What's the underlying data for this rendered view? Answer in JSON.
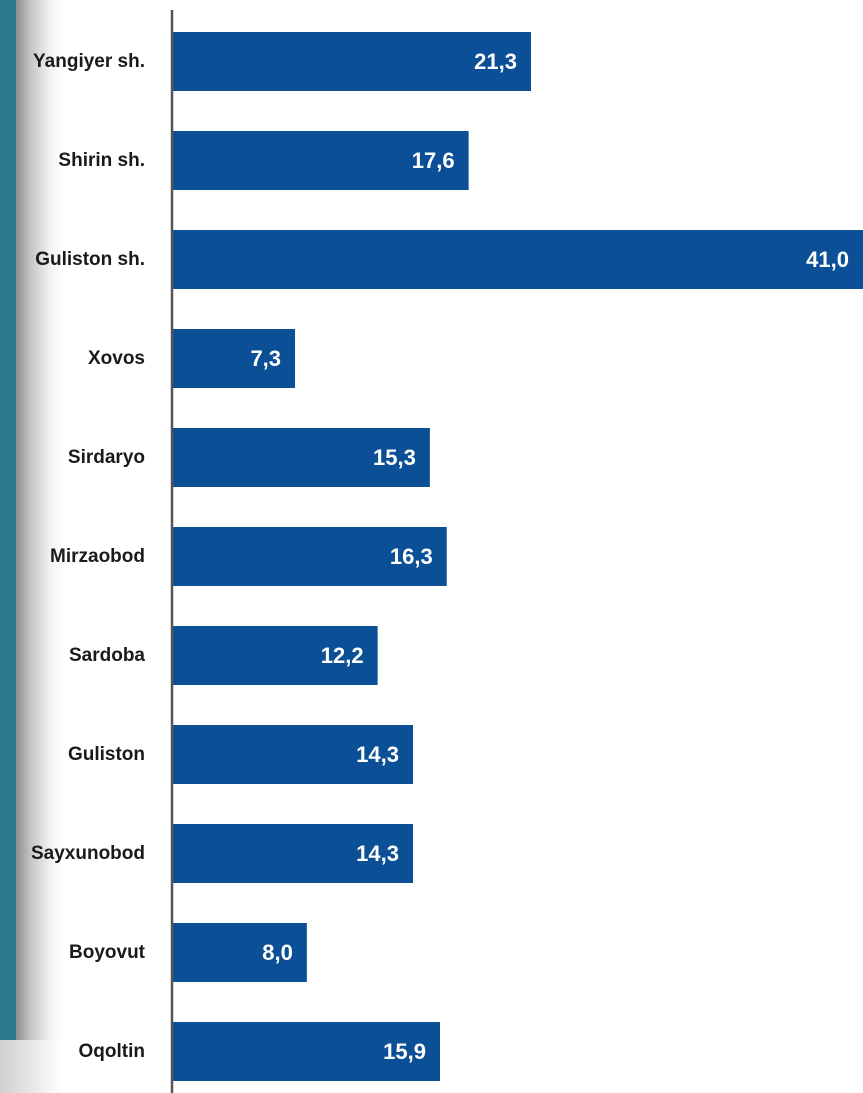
{
  "chart_data": {
    "type": "bar",
    "orientation": "horizontal",
    "categories": [
      "Yangiyer sh.",
      "Shirin sh.",
      "Guliston sh.",
      "Xovos",
      "Sirdaryo",
      "Mirzaobod",
      "Sardoba",
      "Guliston",
      "Sayxunobod",
      "Boyovut",
      "Oqoltin"
    ],
    "values": [
      21.3,
      17.6,
      41.0,
      7.3,
      15.3,
      16.3,
      12.2,
      14.3,
      14.3,
      8.0,
      15.9
    ],
    "value_labels": [
      "21,3",
      "17,6",
      "41,0",
      "7,3",
      "15,3",
      "16,3",
      "12,2",
      "14,3",
      "14,3",
      "8,0",
      "15,9"
    ],
    "xlim": [
      0,
      41.0
    ],
    "grid": false,
    "legend": "none",
    "bar_color": "#0b4f96",
    "accent_color": "#2b7a8c"
  }
}
